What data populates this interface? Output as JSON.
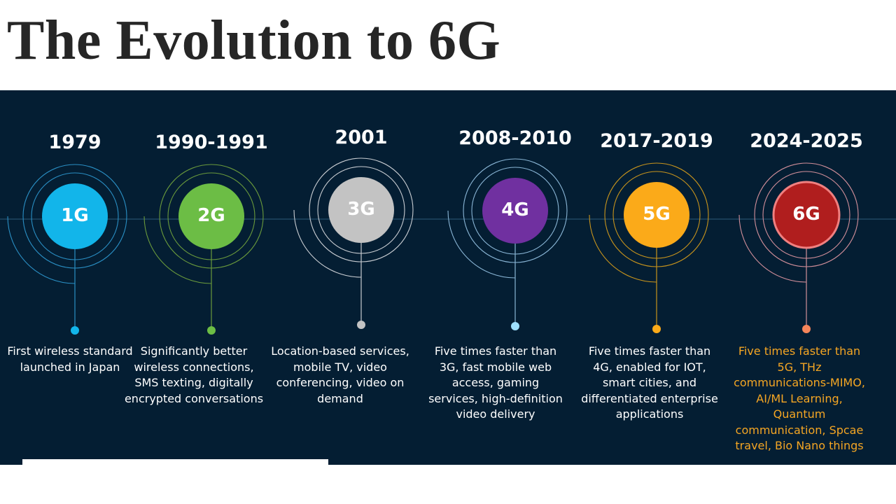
{
  "title": "The Evolution to 6G",
  "generations": [
    {
      "year": "1979",
      "label": "1G",
      "description": "First wireless standard launched in Japan",
      "color": "#12b5ea",
      "ring_color": "#2a8fc4",
      "desc_color": "#ffffff"
    },
    {
      "year": "1990-1991",
      "label": "2G",
      "description": "Significantly better wireless connections, SMS texting, digitally encrypted conversations",
      "color": "#6cbd45",
      "ring_color": "#6a9a3c",
      "desc_color": "#ffffff"
    },
    {
      "year": "2001",
      "label": "3G",
      "description": "Location-based services, mobile TV, video conferencing, video on demand",
      "color": "#c3c3c3",
      "ring_color": "#c9cdd2",
      "desc_color": "#ffffff"
    },
    {
      "year": "2008-2010",
      "label": "4G",
      "description": "Five times faster than 3G, fast mobile web access, gaming services, high-definition video delivery",
      "color": "#7030a0",
      "ring_color": "#8ab6d6",
      "desc_color": "#ffffff"
    },
    {
      "year": "2017-2019",
      "label": "5G",
      "description": "Five times faster than 4G, enabled for IOT, smart cities, and differentiated enterprise applications",
      "color": "#fbaa19",
      "ring_color": "#c8941c",
      "desc_color": "#ffffff"
    },
    {
      "year": "2024-2025",
      "label": "6G",
      "description": "Five times faster than 5G, THz communications-MIMO, AI/ML Learning, Quantum communication, Spcae travel, Bio Nano things",
      "color": "#b01e1e",
      "ring_color": "#d28f9a",
      "desc_color": "#f5a623"
    }
  ],
  "colors": {
    "panel_background": "#041e33",
    "title_text": "#262626",
    "timeline_line": "#2d5a78"
  }
}
